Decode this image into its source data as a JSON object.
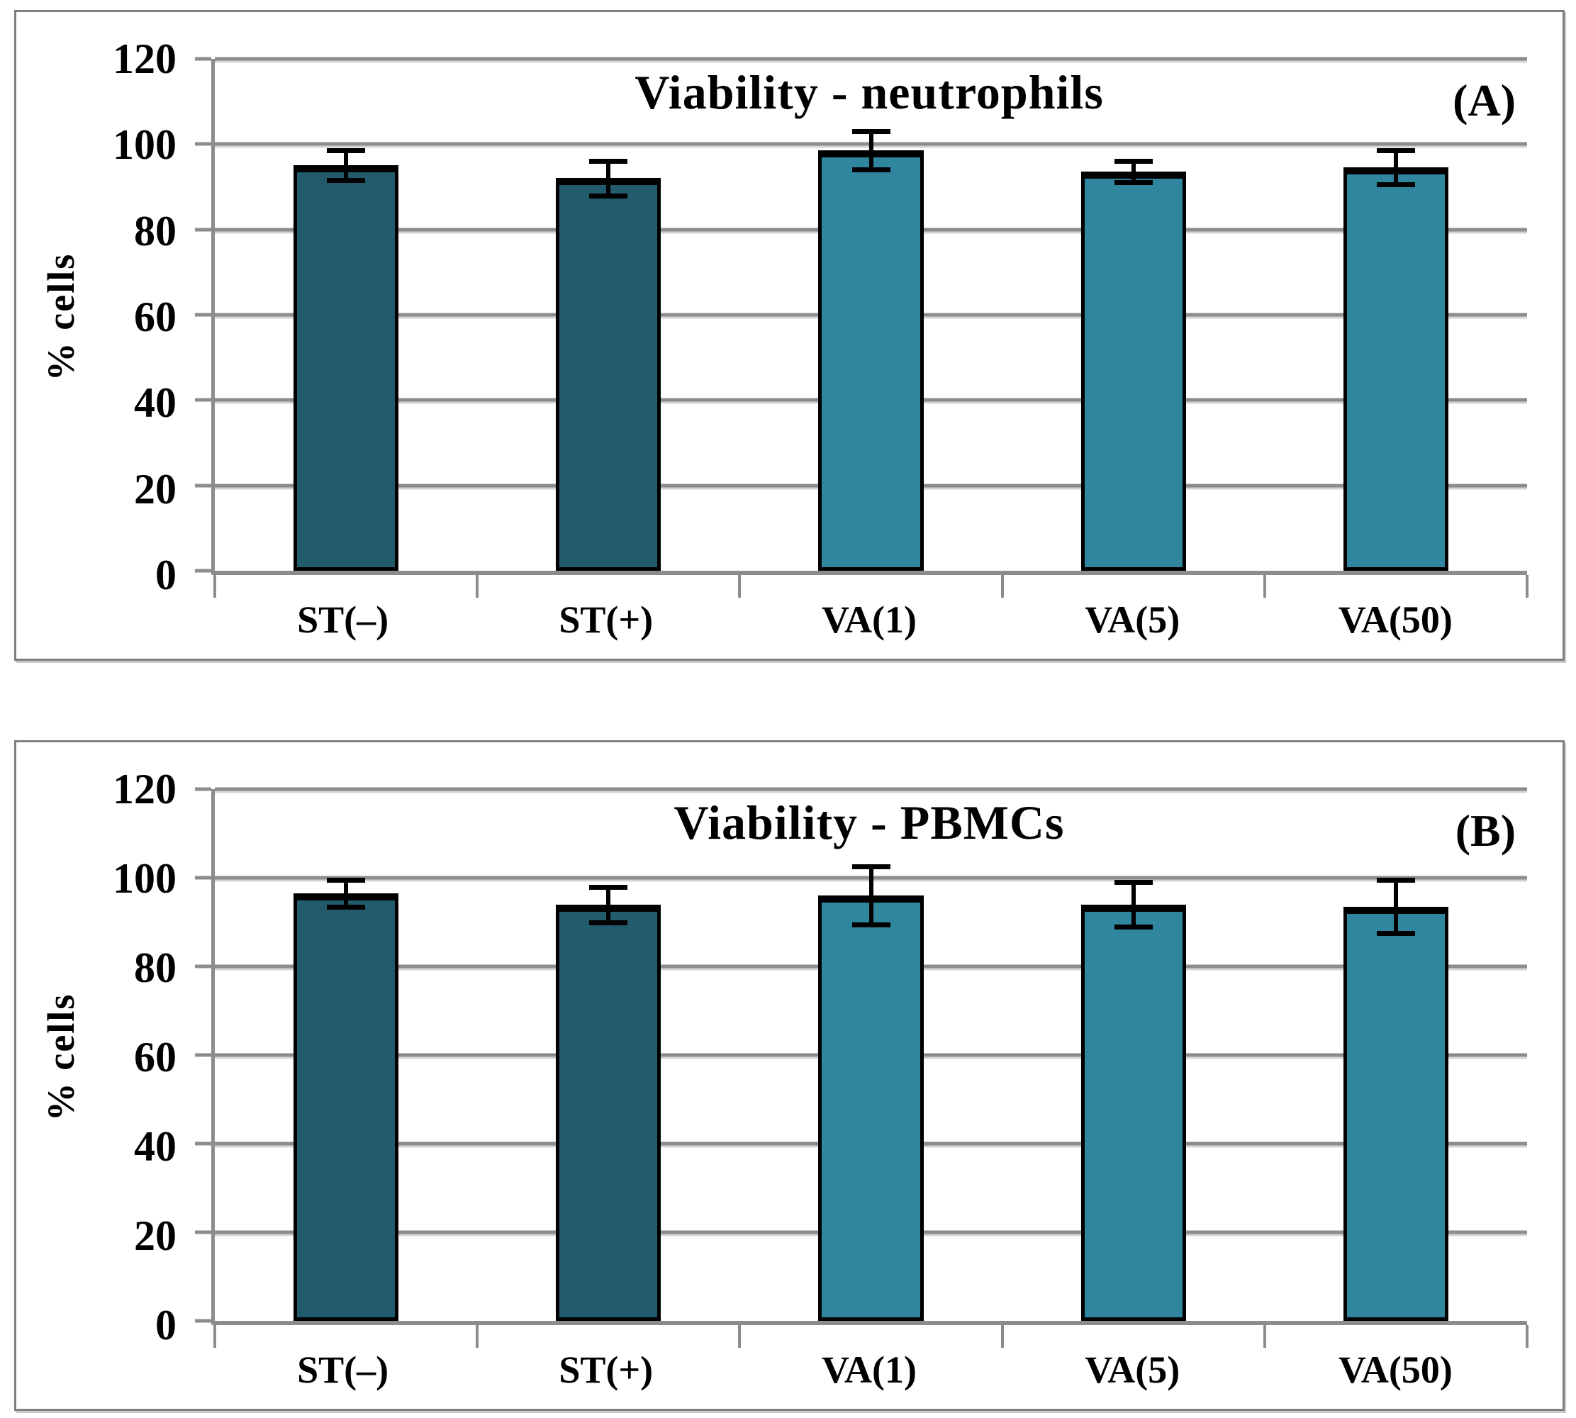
{
  "figure": {
    "background": "#ffffff",
    "panel_border_color": "#7f7f7f",
    "grid_color": "#8c8c8c"
  },
  "chart_data": [
    {
      "type": "bar",
      "panel_label": "(A)",
      "title": "Viability - neutrophils",
      "ylabel": "% cells",
      "xlabel": "",
      "categories": [
        "ST(–)",
        "ST(+)",
        "VA(1)",
        "VA(5)",
        "VA(50)"
      ],
      "values": [
        95,
        92,
        98.5,
        93.5,
        94.5
      ],
      "errors": [
        3.5,
        4,
        4.5,
        2.5,
        4
      ],
      "bar_colors": [
        "#225B6C",
        "#225B6C",
        "#2F869E",
        "#2F869E",
        "#2F869E"
      ],
      "ylim": [
        0,
        120
      ],
      "ytick_step": 20,
      "grid": true,
      "legend": "none"
    },
    {
      "type": "bar",
      "panel_label": "(B)",
      "title": "Viability - PBMCs",
      "ylabel": "% cells",
      "xlabel": "",
      "categories": [
        "ST(–)",
        "ST(+)",
        "VA(1)",
        "VA(5)",
        "VA(50)"
      ],
      "values": [
        96.5,
        94,
        96,
        94,
        93.5
      ],
      "errors": [
        3,
        4,
        6.5,
        5,
        6
      ],
      "bar_colors": [
        "#225B6C",
        "#225B6C",
        "#2F869E",
        "#2F869E",
        "#2F869E"
      ],
      "ylim": [
        0,
        120
      ],
      "ytick_step": 20,
      "grid": true,
      "legend": "none"
    }
  ]
}
